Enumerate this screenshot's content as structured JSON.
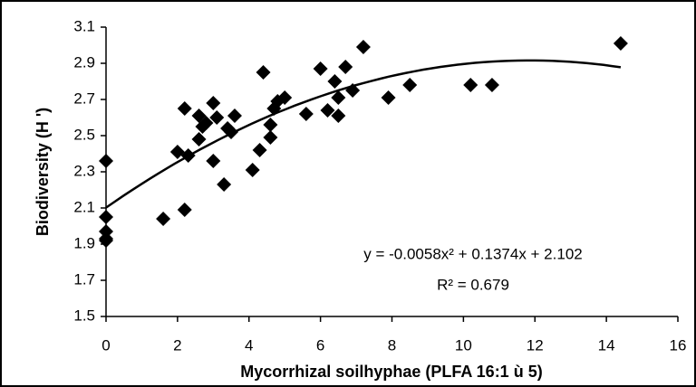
{
  "chart_data": {
    "type": "scatter",
    "xlabel": "Mycorrhizal soilhyphae (PLFA 16:1 ù 5)",
    "ylabel": "Biodiversity (H ')",
    "annotations": [
      "y = -0.0058x² + 0.1374x + 2.102",
      "R² = 0.679"
    ],
    "color": "#000000",
    "x": [
      0,
      0,
      0,
      0,
      0,
      1.6,
      2.0,
      2.2,
      2.2,
      2.3,
      2.6,
      2.6,
      2.7,
      2.8,
      3.0,
      3.0,
      3.1,
      3.3,
      3.4,
      3.5,
      3.6,
      4.1,
      4.3,
      4.4,
      4.6,
      4.6,
      4.7,
      4.8,
      5.0,
      5.6,
      6.0,
      6.2,
      6.4,
      6.5,
      6.5,
      6.7,
      6.9,
      7.2,
      7.9,
      8.5,
      10.2,
      10.8,
      14.4
    ],
    "values": [
      2.36,
      2.05,
      1.97,
      1.92,
      1.93,
      2.04,
      2.41,
      2.09,
      2.65,
      2.39,
      2.61,
      2.48,
      2.55,
      2.57,
      2.68,
      2.36,
      2.6,
      2.23,
      2.54,
      2.52,
      2.61,
      2.31,
      2.42,
      2.85,
      2.56,
      2.49,
      2.65,
      2.69,
      2.71,
      2.62,
      2.87,
      2.64,
      2.8,
      2.71,
      2.61,
      2.88,
      2.75,
      2.99,
      2.71,
      2.78,
      2.78,
      2.78,
      3.01
    ],
    "trendline": {
      "coefficients": [
        -0.0058,
        0.1374,
        2.102
      ],
      "xrange": [
        0,
        14.4
      ]
    },
    "xlim": [
      0,
      16
    ],
    "xticks": [
      0,
      2,
      4,
      6,
      8,
      10,
      12,
      14,
      16
    ],
    "ylim": [
      1.5,
      3.1
    ],
    "yticks": [
      1.5,
      1.7,
      1.9,
      2.1,
      2.3,
      2.5,
      2.7,
      2.9,
      3.1
    ]
  }
}
